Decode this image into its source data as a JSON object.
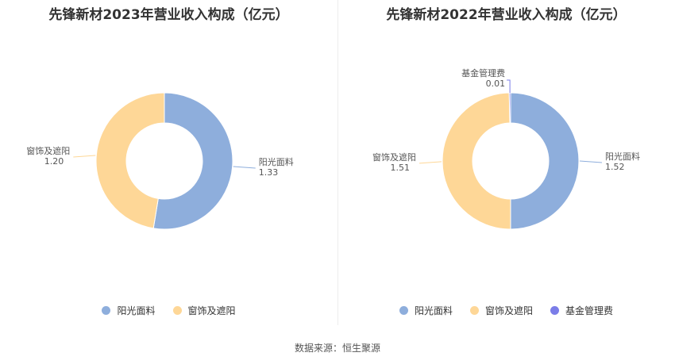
{
  "chart_data": [
    {
      "type": "pie",
      "variant": "donut",
      "title": "先锋新材2023年营业收入构成（亿元）",
      "categories": [
        "阳光面料",
        "窗饰及遮阳"
      ],
      "values": [
        1.33,
        1.2
      ],
      "value_labels": [
        "1.33",
        "1.20"
      ],
      "colors": [
        "#8eaedc",
        "#fed797"
      ],
      "legend": [
        "阳光面料",
        "窗饰及遮阳"
      ],
      "legend_colors": [
        "#8eaedc",
        "#fed797"
      ],
      "legend_position": "bottom"
    },
    {
      "type": "pie",
      "variant": "donut",
      "title": "先锋新材2022年营业收入构成（亿元）",
      "categories": [
        "阳光面料",
        "窗饰及遮阳",
        "基金管理费"
      ],
      "values": [
        1.52,
        1.51,
        0.01
      ],
      "value_labels": [
        "1.52",
        "1.51",
        "0.01"
      ],
      "colors": [
        "#8eaedc",
        "#fed797",
        "#7b7de8"
      ],
      "legend": [
        "阳光面料",
        "窗饰及遮阳",
        "基金管理费"
      ],
      "legend_colors": [
        "#8eaedc",
        "#fed797",
        "#7b7de8"
      ],
      "legend_position": "bottom"
    }
  ],
  "footer": {
    "source": "数据来源：恒生聚源"
  }
}
